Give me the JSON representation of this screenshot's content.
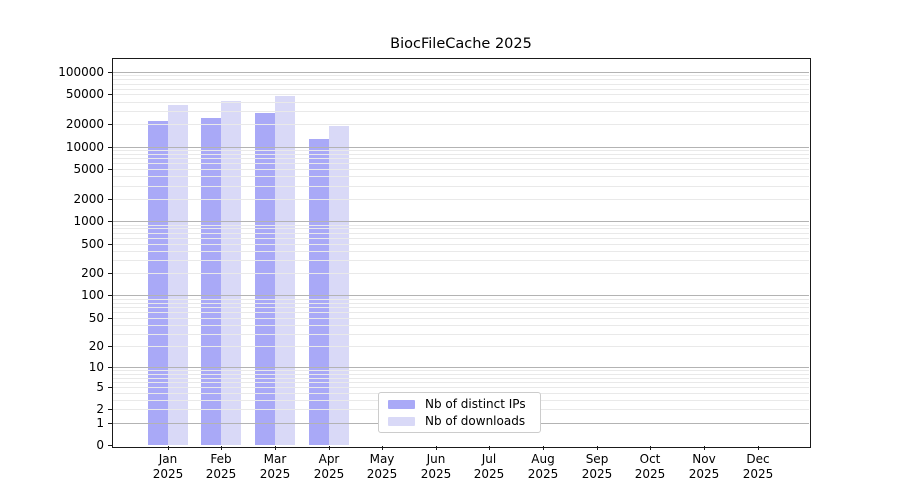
{
  "chart_data": {
    "type": "bar",
    "title": "BiocFileCache 2025",
    "categories": [
      "Jan",
      "Feb",
      "Mar",
      "Apr",
      "May",
      "Jun",
      "Jul",
      "Aug",
      "Sep",
      "Oct",
      "Nov",
      "Dec"
    ],
    "category_year": "2025",
    "series": [
      {
        "name": "Nb of distinct IPs",
        "color": "#a9a9f7",
        "values": [
          21700,
          24000,
          28000,
          12500,
          null,
          null,
          null,
          null,
          null,
          null,
          null,
          null
        ]
      },
      {
        "name": "Nb of downloads",
        "color": "#d9d9f7",
        "values": [
          36000,
          40500,
          48000,
          18700,
          null,
          null,
          null,
          null,
          null,
          null,
          null,
          null
        ]
      }
    ],
    "y_tick_values": [
      0,
      1,
      2,
      5,
      10,
      20,
      50,
      100,
      200,
      500,
      1000,
      2000,
      5000,
      10000,
      20000,
      50000,
      100000
    ],
    "scale": "log10(1+v)",
    "ylim": [
      0,
      150000
    ],
    "grid": "horizontal",
    "legend_position": "bottom-center",
    "colors": {
      "grid_major": "#b3b3b3",
      "grid_minor": "#e9e9e9",
      "axis": "#1a1a1a",
      "text": "#000000",
      "background": "#ffffff"
    }
  }
}
